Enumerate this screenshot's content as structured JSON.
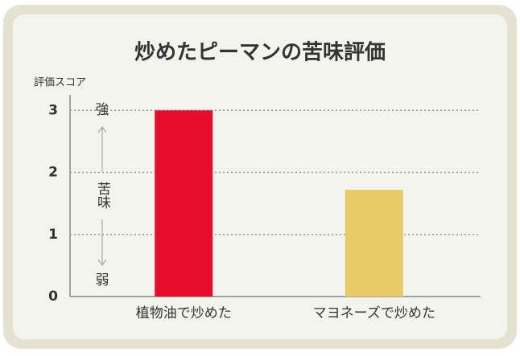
{
  "chart_data": {
    "type": "bar",
    "title": "炒めたピーマンの苦味評価",
    "y_label": "評価スコア",
    "categories": [
      "植物油で炒めた",
      "マヨネーズで炒めた"
    ],
    "series": [
      {
        "name": null,
        "colors": [
          "#e60c2c",
          "#e8cb64"
        ],
        "values": [
          3,
          1.72
        ]
      }
    ],
    "ylim": [
      0,
      3.25
    ],
    "yticks": [
      0,
      1,
      2,
      3
    ],
    "grid": true,
    "annotations": [
      "強",
      "苦味",
      "弱"
    ]
  }
}
